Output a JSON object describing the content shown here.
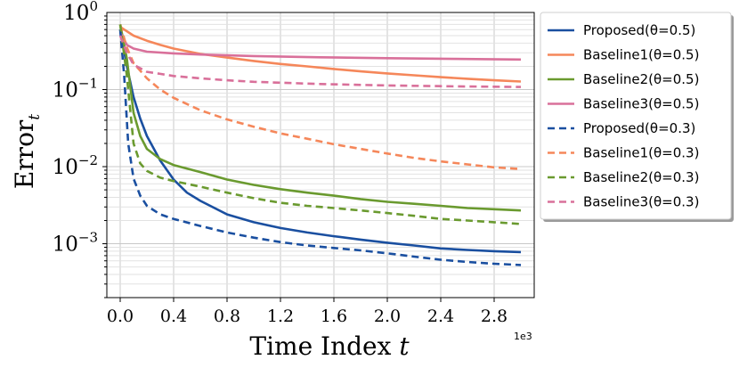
{
  "chart_data": {
    "type": "line",
    "xlabel": "Time Index",
    "xlabel_var": "t",
    "ylabel": "Error",
    "ylabel_sub": "t",
    "x_scale_label": "1e3",
    "xlim": [
      -0.1,
      3.1
    ],
    "ylim": [
      0.0002,
      1.0
    ],
    "yscale": "log",
    "x_ticks": [
      0.0,
      0.4,
      0.8,
      1.2,
      1.6,
      2.0,
      2.4,
      2.8
    ],
    "x_tick_labels": [
      "0.0",
      "0.4",
      "0.8",
      "1.2",
      "1.6",
      "2.0",
      "2.4",
      "2.8"
    ],
    "y_ticks": [
      1,
      0.1,
      0.01,
      0.001
    ],
    "y_tick_labels": [
      {
        "base": "10",
        "exp": "0"
      },
      {
        "base": "10",
        "exp": "−1"
      },
      {
        "base": "10",
        "exp": "−2"
      },
      {
        "base": "10",
        "exp": "−3"
      }
    ],
    "grid": true,
    "legend_position": "outside-right",
    "series": [
      {
        "name": "Proposed(θ=0.5)",
        "color": "#1a4fa0",
        "dash": "solid",
        "x": [
          0,
          0.05,
          0.1,
          0.15,
          0.2,
          0.3,
          0.4,
          0.5,
          0.6,
          0.8,
          1.0,
          1.2,
          1.4,
          1.6,
          1.8,
          2.0,
          2.2,
          2.4,
          2.6,
          2.8,
          3.0
        ],
        "y": [
          0.6,
          0.2,
          0.08,
          0.042,
          0.025,
          0.012,
          0.0068,
          0.0046,
          0.0036,
          0.0024,
          0.0019,
          0.0016,
          0.0014,
          0.00125,
          0.00113,
          0.00103,
          0.00095,
          0.00087,
          0.00083,
          0.0008,
          0.00078
        ]
      },
      {
        "name": "Baseline1(θ=0.5)",
        "color": "#f5875a",
        "dash": "solid",
        "x": [
          0,
          0.1,
          0.2,
          0.3,
          0.4,
          0.6,
          0.8,
          1.0,
          1.2,
          1.4,
          1.6,
          1.8,
          2.0,
          2.2,
          2.4,
          2.6,
          2.8,
          3.0
        ],
        "y": [
          0.65,
          0.5,
          0.43,
          0.38,
          0.34,
          0.29,
          0.26,
          0.235,
          0.215,
          0.2,
          0.185,
          0.172,
          0.162,
          0.153,
          0.145,
          0.138,
          0.132,
          0.127
        ]
      },
      {
        "name": "Baseline2(θ=0.5)",
        "color": "#6a9a2f",
        "dash": "solid",
        "x": [
          0,
          0.05,
          0.1,
          0.15,
          0.2,
          0.3,
          0.4,
          0.6,
          0.8,
          1.0,
          1.2,
          1.4,
          1.6,
          1.8,
          2.0,
          2.2,
          2.4,
          2.6,
          2.8,
          3.0
        ],
        "y": [
          0.7,
          0.25,
          0.05,
          0.025,
          0.017,
          0.0125,
          0.0105,
          0.0085,
          0.0068,
          0.0058,
          0.0051,
          0.0046,
          0.0042,
          0.0038,
          0.0035,
          0.0033,
          0.0031,
          0.0029,
          0.0028,
          0.0027
        ]
      },
      {
        "name": "Baseline3(θ=0.5)",
        "color": "#d9709a",
        "dash": "solid",
        "x": [
          0,
          0.05,
          0.1,
          0.2,
          0.4,
          0.6,
          0.8,
          1.0,
          1.5,
          2.0,
          2.5,
          3.0
        ],
        "y": [
          0.55,
          0.38,
          0.34,
          0.31,
          0.295,
          0.285,
          0.278,
          0.272,
          0.262,
          0.255,
          0.25,
          0.245
        ]
      },
      {
        "name": "Proposed(θ=0.3)",
        "color": "#1a4fa0",
        "dash": "dashed",
        "x": [
          0,
          0.03,
          0.06,
          0.1,
          0.15,
          0.2,
          0.3,
          0.4,
          0.6,
          0.8,
          1.0,
          1.2,
          1.4,
          1.6,
          1.8,
          2.0,
          2.2,
          2.4,
          2.6,
          2.8,
          3.0
        ],
        "y": [
          0.6,
          0.15,
          0.02,
          0.007,
          0.0042,
          0.0031,
          0.0024,
          0.0021,
          0.0017,
          0.0014,
          0.0012,
          0.00105,
          0.00095,
          0.00088,
          0.00082,
          0.00075,
          0.00068,
          0.00062,
          0.00058,
          0.00055,
          0.00053
        ]
      },
      {
        "name": "Baseline1(θ=0.3)",
        "color": "#f5875a",
        "dash": "dashed",
        "x": [
          0,
          0.05,
          0.1,
          0.2,
          0.3,
          0.4,
          0.6,
          0.8,
          1.0,
          1.2,
          1.4,
          1.6,
          1.8,
          2.0,
          2.2,
          2.4,
          2.6,
          2.8,
          3.0
        ],
        "y": [
          0.7,
          0.35,
          0.22,
          0.14,
          0.1,
          0.078,
          0.054,
          0.041,
          0.033,
          0.027,
          0.023,
          0.0195,
          0.017,
          0.0148,
          0.013,
          0.0117,
          0.0107,
          0.0098,
          0.0093
        ]
      },
      {
        "name": "Baseline2(θ=0.3)",
        "color": "#6a9a2f",
        "dash": "dashed",
        "x": [
          0,
          0.05,
          0.1,
          0.15,
          0.2,
          0.3,
          0.4,
          0.6,
          0.8,
          1.0,
          1.2,
          1.4,
          1.6,
          1.8,
          2.0,
          2.2,
          2.4,
          2.6,
          2.8,
          3.0
        ],
        "y": [
          0.7,
          0.15,
          0.02,
          0.011,
          0.0088,
          0.0072,
          0.0065,
          0.0055,
          0.0046,
          0.0039,
          0.0034,
          0.0031,
          0.0029,
          0.0027,
          0.0025,
          0.0023,
          0.0021,
          0.002,
          0.0019,
          0.0018
        ]
      },
      {
        "name": "Baseline3(θ=0.3)",
        "color": "#d9709a",
        "dash": "dashed",
        "x": [
          0,
          0.05,
          0.1,
          0.2,
          0.3,
          0.4,
          0.6,
          0.8,
          1.0,
          1.5,
          2.0,
          2.5,
          3.0
        ],
        "y": [
          0.5,
          0.3,
          0.21,
          0.17,
          0.16,
          0.15,
          0.14,
          0.132,
          0.126,
          0.118,
          0.113,
          0.11,
          0.108
        ]
      }
    ]
  }
}
